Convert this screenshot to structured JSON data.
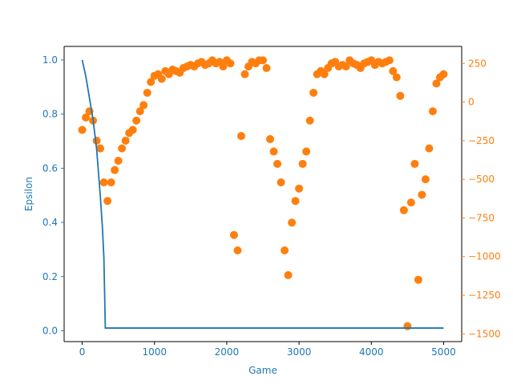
{
  "chart_data": {
    "type": "line+scatter",
    "xlabel": "Game",
    "ylabel_left": "Epsilon",
    "ylabel_right": "",
    "xlim": [
      -250,
      5250
    ],
    "ylim_left": [
      -0.04,
      1.05
    ],
    "ylim_right": [
      -1550,
      360
    ],
    "x_ticks": [
      0,
      1000,
      2000,
      3000,
      4000,
      5000
    ],
    "y_ticks_left": [
      0.0,
      0.2,
      0.4,
      0.6,
      0.8,
      1.0
    ],
    "y_ticks_right": [
      250,
      0,
      -250,
      -500,
      -750,
      -1000,
      -1250,
      -1500
    ],
    "grid": false,
    "colors": {
      "left": "#1f77b4",
      "right": "#ff7f0e",
      "axes": "#000000"
    },
    "epsilon_line": {
      "name": "",
      "x": [
        0,
        50,
        100,
        150,
        200,
        250,
        280,
        300,
        320,
        5000
      ],
      "y": [
        1.0,
        0.94,
        0.86,
        0.78,
        0.67,
        0.5,
        0.38,
        0.27,
        0.01,
        0.01
      ]
    },
    "score_scatter": {
      "name": "",
      "x": [
        0,
        50,
        100,
        150,
        200,
        250,
        300,
        350,
        400,
        450,
        500,
        550,
        600,
        650,
        700,
        750,
        800,
        850,
        900,
        950,
        1000,
        1050,
        1100,
        1150,
        1200,
        1250,
        1300,
        1350,
        1400,
        1450,
        1500,
        1550,
        1600,
        1650,
        1700,
        1750,
        1800,
        1850,
        1900,
        1950,
        2000,
        2050,
        2100,
        2150,
        2200,
        2250,
        2300,
        2350,
        2400,
        2450,
        2500,
        2550,
        2600,
        2650,
        2700,
        2750,
        2800,
        2850,
        2900,
        2950,
        3000,
        3050,
        3100,
        3150,
        3200,
        3250,
        3300,
        3350,
        3400,
        3450,
        3500,
        3550,
        3600,
        3650,
        3700,
        3750,
        3800,
        3850,
        3900,
        3950,
        4000,
        4050,
        4100,
        4150,
        4200,
        4250,
        4300,
        4350,
        4400,
        4450,
        4500,
        4550,
        4600,
        4650,
        4700,
        4750,
        4800,
        4850,
        4900,
        4950,
        5000
      ],
      "y": [
        -180,
        -100,
        -60,
        -120,
        -250,
        -300,
        -520,
        -640,
        -520,
        -440,
        -380,
        -300,
        -250,
        -200,
        -180,
        -120,
        -60,
        -20,
        60,
        130,
        170,
        180,
        150,
        200,
        180,
        210,
        200,
        190,
        220,
        230,
        240,
        230,
        250,
        260,
        240,
        250,
        270,
        250,
        260,
        230,
        270,
        250,
        -860,
        -960,
        -220,
        180,
        230,
        260,
        250,
        270,
        270,
        220,
        -240,
        -320,
        -400,
        -520,
        -960,
        -1120,
        -780,
        -640,
        -560,
        -400,
        -320,
        -120,
        60,
        180,
        200,
        180,
        220,
        250,
        260,
        230,
        240,
        230,
        270,
        250,
        240,
        220,
        250,
        260,
        270,
        240,
        260,
        250,
        260,
        270,
        200,
        160,
        40,
        -700,
        -1450,
        -650,
        -400,
        -1150,
        -600,
        -500,
        -300,
        -60,
        120,
        160,
        180
      ]
    }
  }
}
